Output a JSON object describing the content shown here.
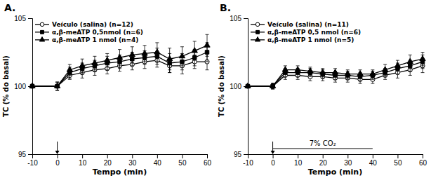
{
  "chart_data": [
    {
      "type": "line",
      "title": "A.",
      "xlabel": "Tempo (min)",
      "ylabel": "TC (% do basal)",
      "x": [
        -10,
        0,
        5,
        10,
        15,
        20,
        25,
        30,
        35,
        40,
        45,
        50,
        55,
        60
      ],
      "xlim": [
        -10,
        60
      ],
      "ylim": [
        95,
        105
      ],
      "xticks": [
        -10,
        0,
        10,
        20,
        30,
        40,
        50,
        60
      ],
      "yticks": [
        95,
        100,
        105
      ],
      "grid": false,
      "legend": "upper-left",
      "annotations": [
        {
          "x": 0
        }
      ],
      "series": [
        {
          "name": "Veículo (salina) (n=12)",
          "color": "black",
          "marker": "open-circle",
          "line_style": "solid",
          "values": [
            100.0,
            100.0,
            100.8,
            101.0,
            101.2,
            101.3,
            101.5,
            101.6,
            101.8,
            101.9,
            101.5,
            101.5,
            101.8,
            101.8
          ],
          "errors": [
            0.0,
            0.3,
            0.3,
            0.4,
            0.4,
            0.4,
            0.4,
            0.4,
            0.5,
            0.5,
            0.5,
            0.6,
            0.5,
            0.6
          ]
        },
        {
          "name": "α,β-meATP 0,5nmol (n=6)",
          "color": "black",
          "marker": "filled-square",
          "line_style": "solid",
          "values": [
            100.0,
            100.0,
            101.0,
            101.3,
            101.5,
            101.7,
            101.8,
            102.0,
            102.1,
            102.2,
            101.7,
            101.8,
            102.1,
            102.5
          ],
          "errors": [
            0.0,
            0.3,
            0.4,
            0.4,
            0.4,
            0.5,
            0.5,
            0.5,
            0.5,
            0.6,
            0.7,
            0.6,
            0.6,
            0.7
          ]
        },
        {
          "name": "α,β-meATP 1 nmol (n=4)",
          "color": "black",
          "marker": "filled-triangle",
          "line_style": "solid",
          "values": [
            100.0,
            100.0,
            101.2,
            101.5,
            101.7,
            101.9,
            102.1,
            102.3,
            102.4,
            102.5,
            102.0,
            102.2,
            102.6,
            103.0
          ],
          "errors": [
            0.0,
            0.3,
            0.4,
            0.5,
            0.5,
            0.5,
            0.6,
            0.6,
            0.6,
            0.7,
            0.8,
            0.7,
            0.7,
            0.8
          ]
        }
      ]
    },
    {
      "type": "line",
      "title": "B.",
      "xlabel": "Tempo (min)",
      "ylabel": "TC (% do basal)",
      "x": [
        -10,
        0,
        5,
        10,
        15,
        20,
        25,
        30,
        35,
        40,
        45,
        50,
        55,
        60
      ],
      "xlim": [
        -10,
        60
      ],
      "ylim": [
        95,
        105
      ],
      "xticks": [
        -10,
        0,
        10,
        20,
        30,
        40,
        50,
        60
      ],
      "yticks": [
        95,
        100,
        105
      ],
      "grid": false,
      "legend": "upper-left",
      "annotations": [
        {
          "x": 0
        },
        {
          "text": "7%  CO₂",
          "x": [
            0,
            40
          ]
        }
      ],
      "series": [
        {
          "name": "Veículo (salina) (n=11)",
          "color": "black",
          "marker": "open-circle",
          "line_style": "solid",
          "values": [
            100.0,
            100.0,
            100.8,
            100.8,
            100.7,
            100.7,
            100.6,
            100.6,
            100.5,
            100.5,
            100.8,
            101.0,
            101.2,
            101.5
          ],
          "errors": [
            0.0,
            0.2,
            0.3,
            0.3,
            0.3,
            0.3,
            0.3,
            0.3,
            0.3,
            0.3,
            0.3,
            0.4,
            0.4,
            0.5
          ]
        },
        {
          "name": "α,β-meATP 0,5 nmol (n=6)",
          "color": "black",
          "marker": "filled-square",
          "line_style": "solid",
          "values": [
            100.0,
            100.0,
            101.0,
            101.0,
            101.0,
            100.9,
            100.8,
            100.8,
            100.7,
            100.8,
            101.0,
            101.3,
            101.5,
            101.8
          ],
          "errors": [
            0.0,
            0.2,
            0.3,
            0.3,
            0.3,
            0.3,
            0.3,
            0.3,
            0.3,
            0.3,
            0.3,
            0.4,
            0.4,
            0.5
          ]
        },
        {
          "name": "α,β-meATP 1 nmol (n=5)",
          "color": "black",
          "marker": "filled-triangle",
          "line_style": "solid",
          "values": [
            100.0,
            100.0,
            101.2,
            101.2,
            101.1,
            101.0,
            101.0,
            100.9,
            100.9,
            100.9,
            101.2,
            101.5,
            101.8,
            102.0
          ],
          "errors": [
            0.0,
            0.2,
            0.3,
            0.3,
            0.3,
            0.3,
            0.3,
            0.3,
            0.3,
            0.3,
            0.4,
            0.4,
            0.5,
            0.5
          ]
        }
      ]
    }
  ]
}
